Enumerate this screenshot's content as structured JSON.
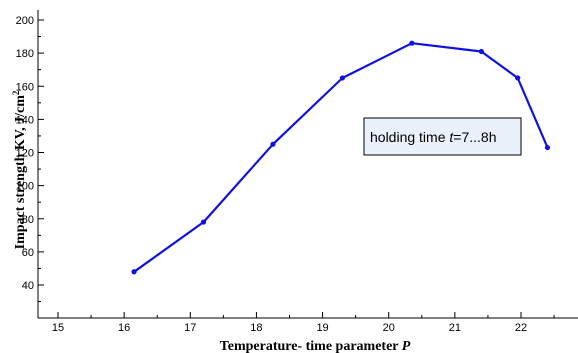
{
  "chart_data": {
    "type": "line",
    "xlabel": {
      "text": "Temperature- time parameter ",
      "var": "P"
    },
    "ylabel": {
      "text": "Impact strength KV, J/cm",
      "sup": "2"
    },
    "xlim": [
      15,
      22.8
    ],
    "ylim": [
      30,
      205
    ],
    "x_ticks": [
      "15",
      "16",
      "17",
      "18",
      "19",
      "20",
      "21",
      "22"
    ],
    "y_ticks": [
      "40",
      "60",
      "80",
      "100",
      "120",
      "140",
      "160",
      "180",
      "200"
    ],
    "series": [
      {
        "color": "#1010e0",
        "x": [
          16.15,
          17.2,
          18.25,
          19.3,
          20.35,
          21.4,
          21.95,
          22.4
        ],
        "y": [
          48,
          78,
          125,
          165,
          186,
          181,
          165,
          123
        ]
      }
    ],
    "annotation": {
      "prefix": "holding time ",
      "var": "t",
      "suffix": "=7...8h"
    },
    "grid": false
  }
}
